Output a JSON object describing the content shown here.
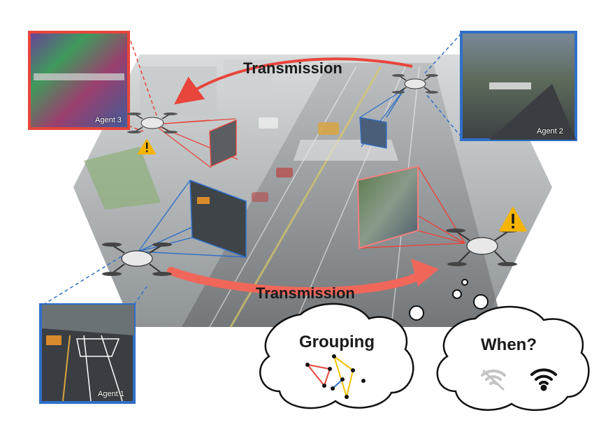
{
  "labels": {
    "transmission_top": "Transmission",
    "transmission_bottom": "Transmission",
    "grouping": "Grouping",
    "when": "When?"
  },
  "agents": [
    {
      "id": "agent-1",
      "label": "Agent 1"
    },
    {
      "id": "agent-2",
      "label": "Agent 2"
    },
    {
      "id": "agent-3",
      "label": "Agent 3"
    }
  ],
  "colors": {
    "red": "#e8453c",
    "blue": "#2f6fc8",
    "yellow_warning": "#f5b400",
    "coral_arrow": "#f0675a",
    "frame_red": "#e8453c",
    "frame_blue": "#2f6fc8"
  },
  "icons": [
    "drone-icon",
    "warning-icon",
    "wifi-weak-icon",
    "wifi-strong-icon"
  ]
}
